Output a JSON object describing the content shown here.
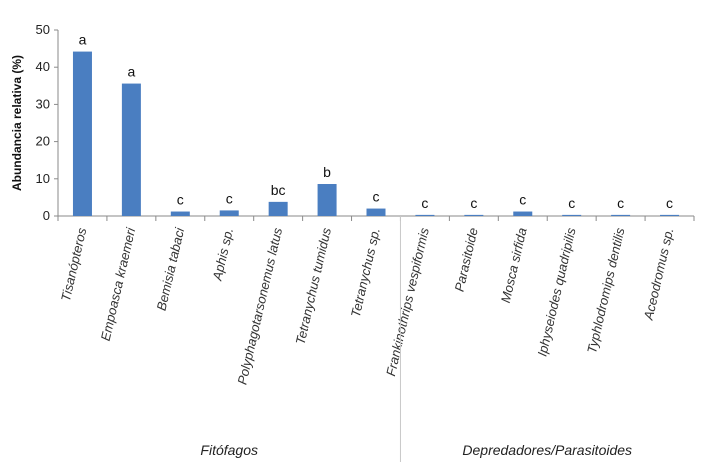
{
  "chart_data": {
    "type": "bar",
    "ylabel": "Abundancia relativa (%)",
    "xlabel": "",
    "ylim": [
      0,
      50
    ],
    "yticks": [
      0,
      10,
      20,
      30,
      40,
      50
    ],
    "categories": [
      "Tisanópteros",
      "Empoasca kraemeri",
      "Bemisia tabaci",
      "Aphis  sp.",
      "Polyphagotarsonemus latus",
      "Tetranychus tumidus",
      "Tetranychus sp.",
      "Frankinothrips vespiformis",
      "Parasitoide",
      "Mosca sirfida",
      "Iphyseiodes quadripilis",
      "Typhlodromips dentilis",
      "Aceodromus sp."
    ],
    "values": [
      44.2,
      35.6,
      1.2,
      1.5,
      3.8,
      8.6,
      2.0,
      0.3,
      0.3,
      1.2,
      0.3,
      0.3,
      0.3
    ],
    "letters": [
      "a",
      "a",
      "c",
      "c",
      "bc",
      "b",
      "c",
      "c",
      "c",
      "c",
      "c",
      "c",
      "c"
    ],
    "groups": [
      {
        "label": "Fitófagos",
        "span": [
          0,
          6
        ]
      },
      {
        "label": "Depredadores/Parasitoides",
        "span": [
          7,
          12
        ]
      }
    ],
    "bar_color": "#4a7ec1",
    "grid": false
  }
}
